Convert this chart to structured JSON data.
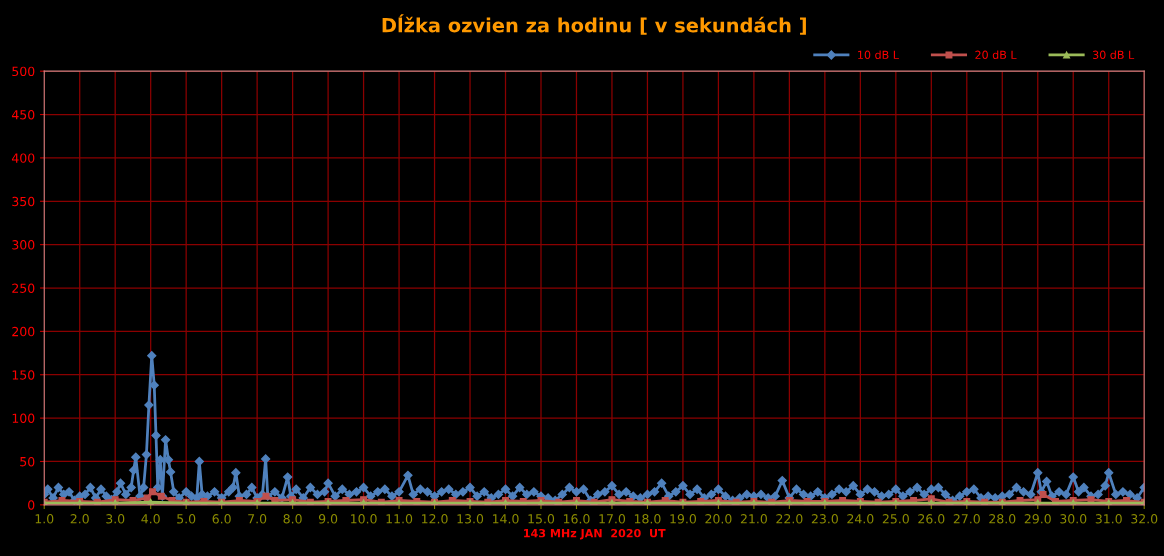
{
  "chart_data": {
    "type": "line",
    "title": "Dĺžka ozvien za hodinu [ v sekundách ]",
    "xlabel": "143 MHz JAN  2020  UT",
    "xlim": [
      1,
      32
    ],
    "xticks": [
      {
        "value": 1,
        "label": "1.0"
      },
      {
        "value": 2,
        "label": "2.0"
      },
      {
        "value": 3,
        "label": "3.0"
      },
      {
        "value": 4,
        "label": "4.0"
      },
      {
        "value": 5,
        "label": "5.0"
      },
      {
        "value": 6,
        "label": "6.0"
      },
      {
        "value": 7,
        "label": "7.0"
      },
      {
        "value": 8,
        "label": "8.0"
      },
      {
        "value": 9,
        "label": "9.0"
      },
      {
        "value": 10,
        "label": "10.0"
      },
      {
        "value": 11,
        "label": "11.0"
      },
      {
        "value": 12,
        "label": "12.0"
      },
      {
        "value": 13,
        "label": "13.0"
      },
      {
        "value": 14,
        "label": "14.0"
      },
      {
        "value": 15,
        "label": "15.0"
      },
      {
        "value": 16,
        "label": "16.0"
      },
      {
        "value": 17,
        "label": "17.0"
      },
      {
        "value": 18,
        "label": "18.0"
      },
      {
        "value": 19,
        "label": "19.0"
      },
      {
        "value": 20,
        "label": "20.0"
      },
      {
        "value": 21,
        "label": "21.0"
      },
      {
        "value": 22,
        "label": "22.0"
      },
      {
        "value": 23,
        "label": "23.0"
      },
      {
        "value": 24,
        "label": "24.0"
      },
      {
        "value": 25,
        "label": "25.0"
      },
      {
        "value": 26,
        "label": "26.0"
      },
      {
        "value": 27,
        "label": "27.0"
      },
      {
        "value": 28,
        "label": "28.0"
      },
      {
        "value": 29,
        "label": "29.0"
      },
      {
        "value": 30,
        "label": "30.0"
      },
      {
        "value": 31,
        "label": "31.0"
      },
      {
        "value": 32,
        "label": "32.0"
      }
    ],
    "ylim": [
      0,
      500
    ],
    "yticks": [
      0,
      50,
      100,
      150,
      200,
      250,
      300,
      350,
      400,
      450,
      500
    ],
    "grid": true,
    "legend": "top right",
    "line_style": "solid",
    "series": [
      {
        "name": "10 dB L",
        "color": "#4f81bd",
        "marker": "diamond",
        "x": [
          1.0,
          1.1,
          1.25,
          1.4,
          1.55,
          1.7,
          1.85,
          2.0,
          2.15,
          2.3,
          2.45,
          2.6,
          2.75,
          2.9,
          3.05,
          3.15,
          3.3,
          3.45,
          3.52,
          3.58,
          3.7,
          3.8,
          3.88,
          3.95,
          4.03,
          4.1,
          4.15,
          4.2,
          4.27,
          4.33,
          4.42,
          4.5,
          4.56,
          4.65,
          4.8,
          5.0,
          5.15,
          5.3,
          5.37,
          5.45,
          5.6,
          5.8,
          6.0,
          6.2,
          6.32,
          6.4,
          6.5,
          6.7,
          6.85,
          7.0,
          7.15,
          7.24,
          7.3,
          7.5,
          7.7,
          7.86,
          7.95,
          8.1,
          8.3,
          8.5,
          8.7,
          8.9,
          9.0,
          9.2,
          9.4,
          9.6,
          9.8,
          10.0,
          10.2,
          10.4,
          10.6,
          10.8,
          11.0,
          11.25,
          11.4,
          11.6,
          11.8,
          12.0,
          12.2,
          12.4,
          12.6,
          12.8,
          13.0,
          13.2,
          13.4,
          13.6,
          13.8,
          14.0,
          14.2,
          14.4,
          14.6,
          14.8,
          15.0,
          15.2,
          15.4,
          15.6,
          15.8,
          16.0,
          16.2,
          16.4,
          16.6,
          16.8,
          17.0,
          17.2,
          17.4,
          17.6,
          17.8,
          18.0,
          18.2,
          18.4,
          18.6,
          18.8,
          19.0,
          19.2,
          19.4,
          19.6,
          19.8,
          20.0,
          20.2,
          20.4,
          20.6,
          20.8,
          21.0,
          21.2,
          21.4,
          21.6,
          21.8,
          22.0,
          22.2,
          22.4,
          22.6,
          22.8,
          23.0,
          23.2,
          23.4,
          23.6,
          23.8,
          24.0,
          24.2,
          24.4,
          24.6,
          24.8,
          25.0,
          25.2,
          25.4,
          25.6,
          25.8,
          26.0,
          26.2,
          26.4,
          26.6,
          26.8,
          27.0,
          27.2,
          27.4,
          27.6,
          27.8,
          28.0,
          28.2,
          28.4,
          28.6,
          28.8,
          29.0,
          29.1,
          29.25,
          29.4,
          29.6,
          29.8,
          30.0,
          30.15,
          30.3,
          30.5,
          30.7,
          30.9,
          31.0,
          31.2,
          31.4,
          31.6,
          31.8,
          32.0
        ],
        "values": [
          12,
          18,
          8,
          20,
          12,
          15,
          5,
          10,
          12,
          20,
          8,
          18,
          10,
          6,
          15,
          25,
          12,
          20,
          40,
          55,
          10,
          20,
          58,
          115,
          172,
          138,
          80,
          20,
          52,
          10,
          75,
          52,
          38,
          15,
          8,
          15,
          10,
          8,
          50,
          12,
          10,
          15,
          8,
          15,
          20,
          37,
          10,
          12,
          20,
          8,
          12,
          53,
          10,
          15,
          8,
          32,
          10,
          18,
          8,
          20,
          12,
          15,
          25,
          10,
          18,
          12,
          15,
          20,
          10,
          15,
          18,
          10,
          15,
          34,
          12,
          18,
          15,
          10,
          15,
          18,
          12,
          15,
          20,
          10,
          15,
          8,
          12,
          18,
          10,
          20,
          12,
          15,
          10,
          8,
          5,
          12,
          20,
          15,
          18,
          5,
          12,
          15,
          22,
          12,
          15,
          10,
          8,
          12,
          15,
          25,
          10,
          15,
          22,
          12,
          18,
          8,
          12,
          18,
          10,
          5,
          8,
          12,
          10,
          12,
          8,
          10,
          28,
          8,
          18,
          12,
          10,
          15,
          8,
          12,
          18,
          15,
          22,
          12,
          18,
          15,
          10,
          12,
          18,
          10,
          15,
          20,
          12,
          18,
          20,
          12,
          5,
          10,
          15,
          18,
          8,
          10,
          8,
          10,
          12,
          20,
          15,
          12,
          37,
          15,
          27,
          10,
          15,
          12,
          32,
          15,
          20,
          10,
          12,
          22,
          37,
          12,
          15,
          12,
          8,
          20
        ]
      },
      {
        "name": "20 dB L",
        "color": "#c0504d",
        "marker": "square",
        "x": [
          1.0,
          1.5,
          2.0,
          2.5,
          3.0,
          3.5,
          3.9,
          4.05,
          4.3,
          4.6,
          5.0,
          5.5,
          6.0,
          6.5,
          7.0,
          7.25,
          7.5,
          8.0,
          8.5,
          9.0,
          9.5,
          10.0,
          10.5,
          11.0,
          11.5,
          12.0,
          12.5,
          13.0,
          13.5,
          14.0,
          14.5,
          15.0,
          15.5,
          16.0,
          16.5,
          17.0,
          17.5,
          18.0,
          18.5,
          19.0,
          19.5,
          20.0,
          20.5,
          21.0,
          21.5,
          22.0,
          22.5,
          23.0,
          23.5,
          24.0,
          24.5,
          25.0,
          25.5,
          26.0,
          26.5,
          27.0,
          27.5,
          28.0,
          28.5,
          29.0,
          29.15,
          29.5,
          30.0,
          30.5,
          31.0,
          31.5,
          32.0
        ],
        "values": [
          3,
          5,
          4,
          3,
          6,
          5,
          8,
          15,
          10,
          5,
          3,
          4,
          3,
          5,
          4,
          10,
          5,
          6,
          3,
          4,
          5,
          6,
          3,
          5,
          4,
          3,
          5,
          4,
          3,
          5,
          4,
          5,
          3,
          5,
          3,
          6,
          4,
          3,
          5,
          3,
          4,
          5,
          3,
          4,
          3,
          5,
          4,
          4,
          5,
          4,
          3,
          4,
          5,
          7,
          3,
          4,
          3,
          3,
          5,
          6,
          12,
          4,
          5,
          6,
          4,
          5,
          3
        ]
      },
      {
        "name": "30 dB L",
        "color": "#9bbb59",
        "marker": "triangle",
        "x": [
          1,
          2,
          3,
          4,
          5,
          6,
          7,
          8,
          9,
          10,
          11,
          12,
          13,
          14,
          15,
          16,
          17,
          18,
          19,
          20,
          21,
          22,
          23,
          24,
          25,
          26,
          27,
          28,
          29,
          30,
          31,
          32
        ],
        "values": [
          2,
          2,
          2,
          3,
          2,
          2,
          2,
          2,
          2,
          2,
          2,
          2,
          2,
          2,
          2,
          2,
          2,
          2,
          2,
          2,
          2,
          2,
          2,
          2,
          2,
          2,
          2,
          2,
          2,
          2,
          2,
          2
        ]
      }
    ]
  }
}
